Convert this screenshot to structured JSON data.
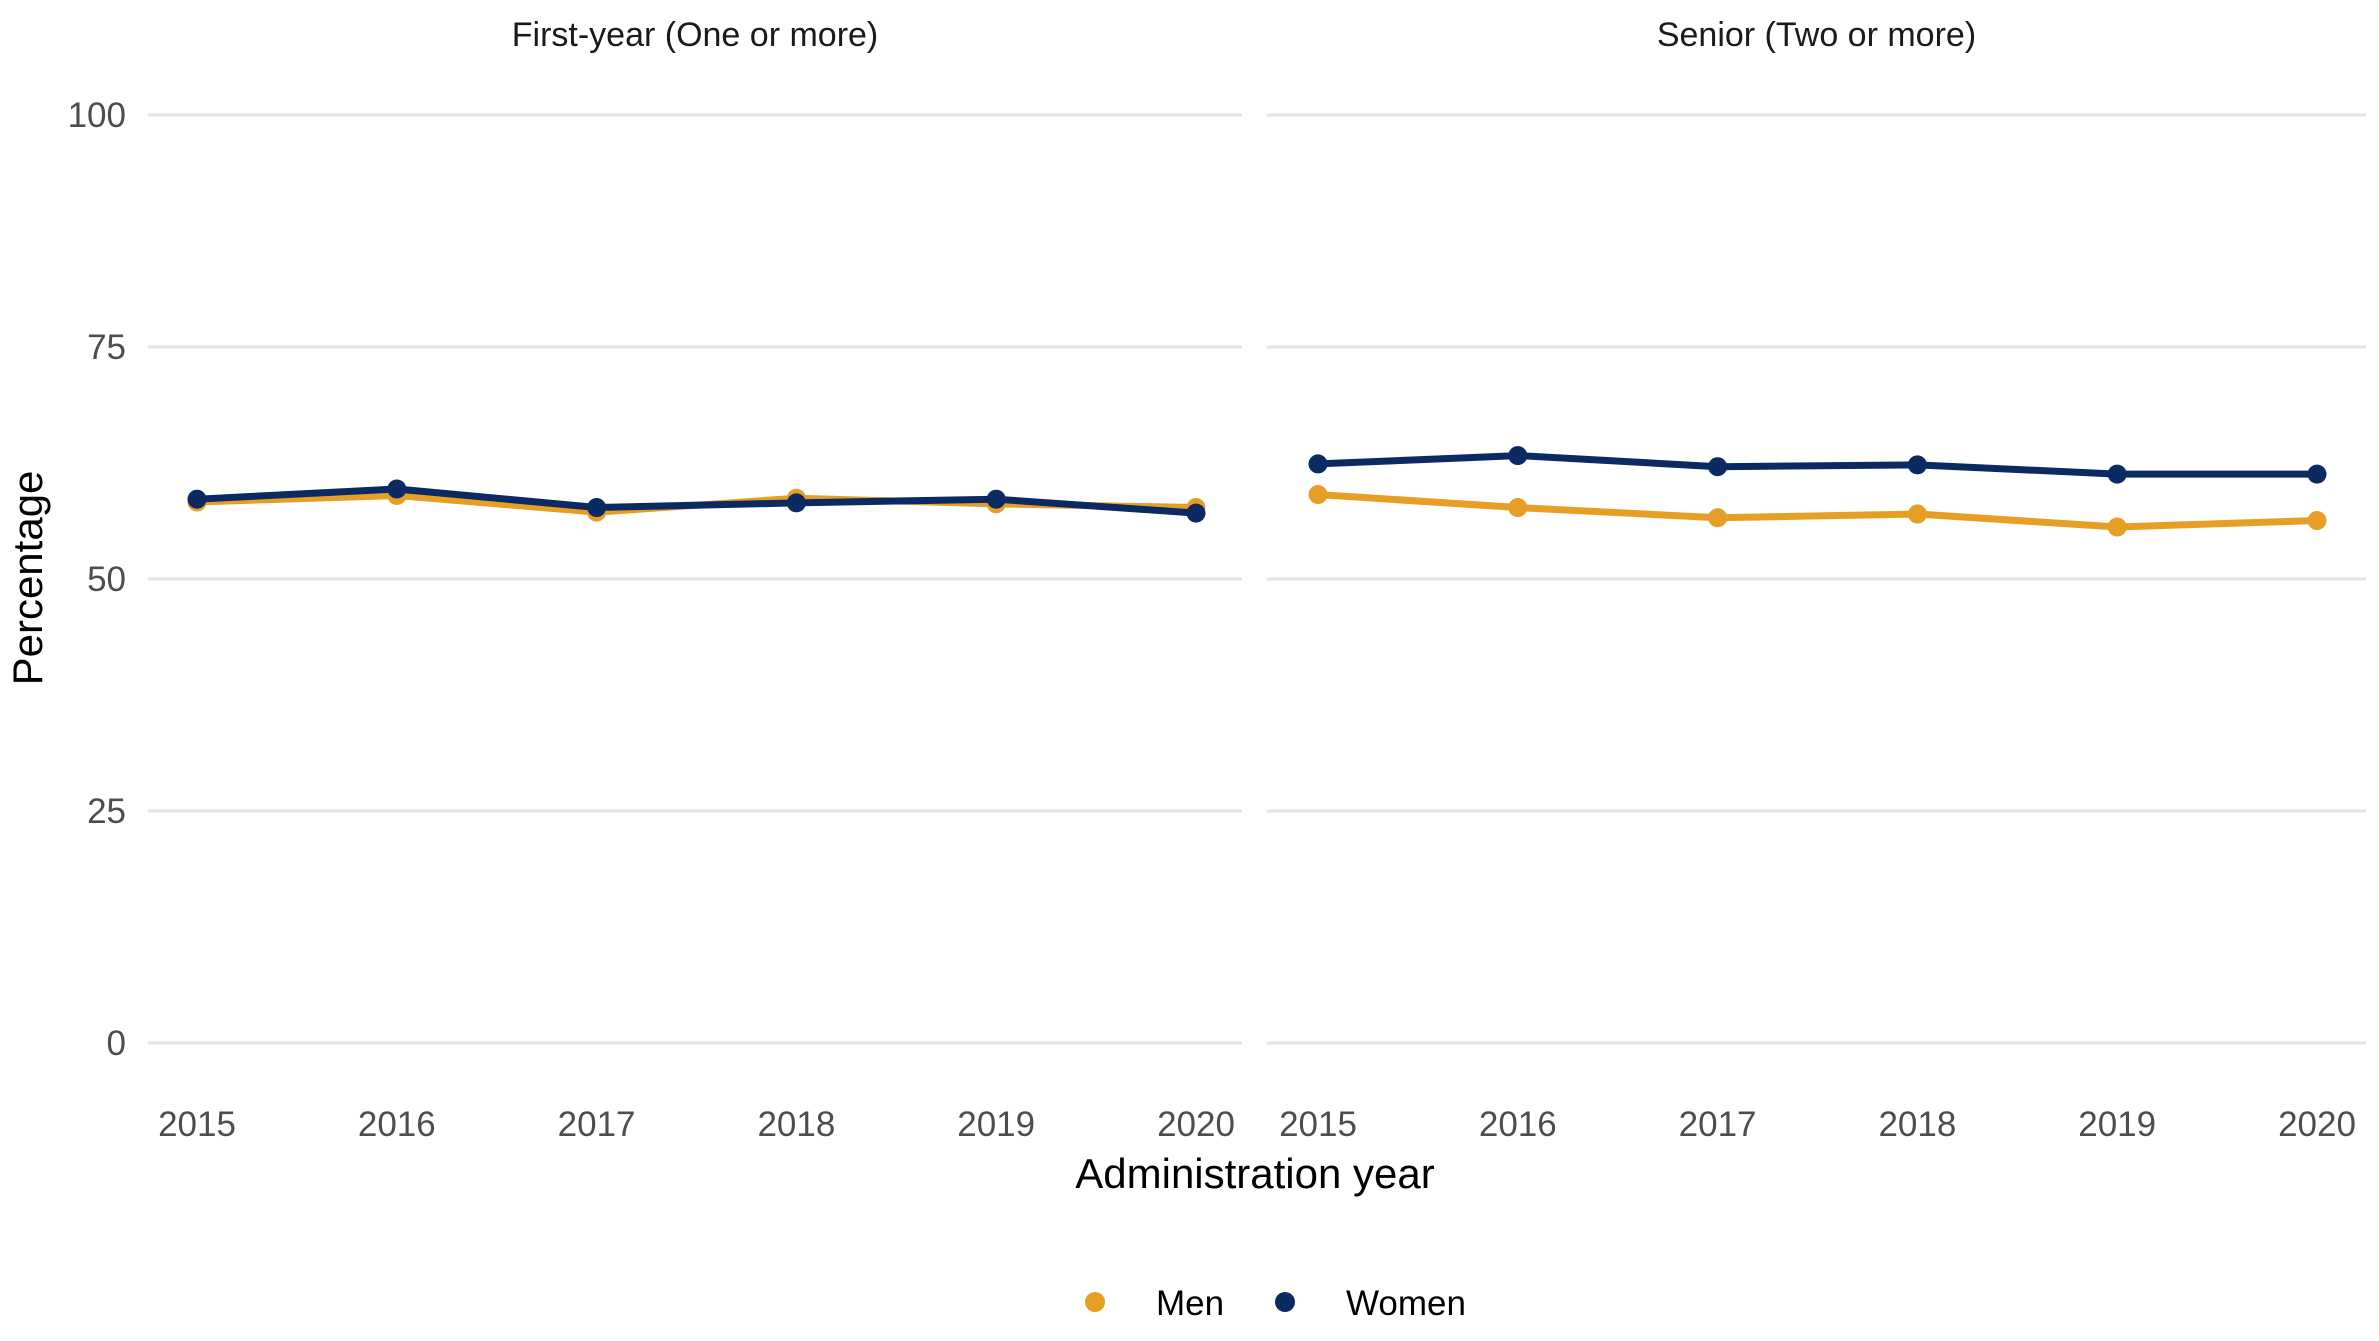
{
  "chart_data": {
    "type": "line",
    "ylabel": "Percentage",
    "xlabel": "Administration year",
    "ylim": [
      0,
      100
    ],
    "yticks": [
      0,
      25,
      50,
      75,
      100
    ],
    "x": [
      2015,
      2016,
      2017,
      2018,
      2019,
      2020
    ],
    "grid": true,
    "legend": {
      "position": "bottom",
      "entries": [
        {
          "name": "Men",
          "color": "#E69F24"
        },
        {
          "name": "Women",
          "color": "#0C2A62"
        }
      ]
    },
    "panels": [
      {
        "title": "First-year (One or more)",
        "series": [
          {
            "name": "Men",
            "color": "#E69F24",
            "values": [
              58.3,
              59.0,
              57.2,
              58.7,
              58.1,
              57.7
            ]
          },
          {
            "name": "Women",
            "color": "#0C2A62",
            "values": [
              58.6,
              59.7,
              57.7,
              58.2,
              58.6,
              57.1
            ]
          }
        ]
      },
      {
        "title": "Senior (Two or more)",
        "series": [
          {
            "name": "Men",
            "color": "#E69F24",
            "values": [
              59.1,
              57.7,
              56.6,
              57.0,
              55.6,
              56.3
            ]
          },
          {
            "name": "Women",
            "color": "#0C2A62",
            "values": [
              62.4,
              63.3,
              62.1,
              62.3,
              61.3,
              61.3
            ]
          }
        ]
      }
    ]
  }
}
